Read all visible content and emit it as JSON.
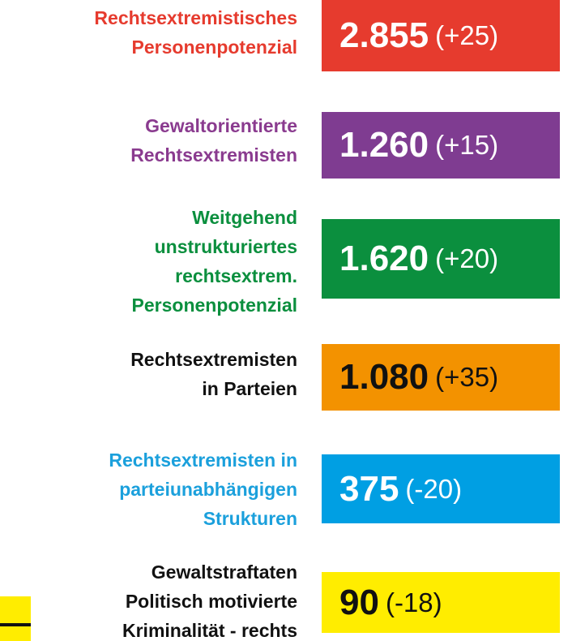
{
  "rows": [
    {
      "label_lines": [
        "Rechtsextremistisches",
        "Personenpotenzial"
      ],
      "value": "2.855",
      "change": "(+25)",
      "label_color": "#e63b2e",
      "box_color": "#e63b2e",
      "text_color": "#ffffff"
    },
    {
      "label_lines": [
        "Gewaltorientierte",
        "Rechtsextremisten"
      ],
      "value": "1.260",
      "change": "(+15)",
      "label_color": "#8a3b8f",
      "box_color": "#7f3c91",
      "text_color": "#ffffff"
    },
    {
      "label_lines": [
        "Weitgehend",
        "unstrukturiertes",
        "rechtsextrem.",
        "Personenpotenzial"
      ],
      "value": "1.620",
      "change": "(+20)",
      "label_color": "#0b8f3e",
      "box_color": "#0b8f3e",
      "text_color": "#ffffff"
    },
    {
      "label_lines": [
        "Rechtsextremisten",
        "in Parteien"
      ],
      "value": "1.080",
      "change": "(+35)",
      "label_color": "#111111",
      "box_color": "#f39200",
      "text_color": "#111111"
    },
    {
      "label_lines": [
        "Rechtsextremisten in",
        "parteiunabhängigen",
        "Strukturen"
      ],
      "value": "375",
      "change": "(-20)",
      "label_color": "#1ba0dc",
      "box_color": "#009fe3",
      "text_color": "#ffffff"
    },
    {
      "label_lines": [
        "Gewaltstraftaten",
        "Politisch motivierte",
        "Kriminalität - rechts"
      ],
      "value": "90",
      "change": "(-18)",
      "label_color": "#111111",
      "box_color": "#ffed00",
      "text_color": "#111111"
    }
  ]
}
